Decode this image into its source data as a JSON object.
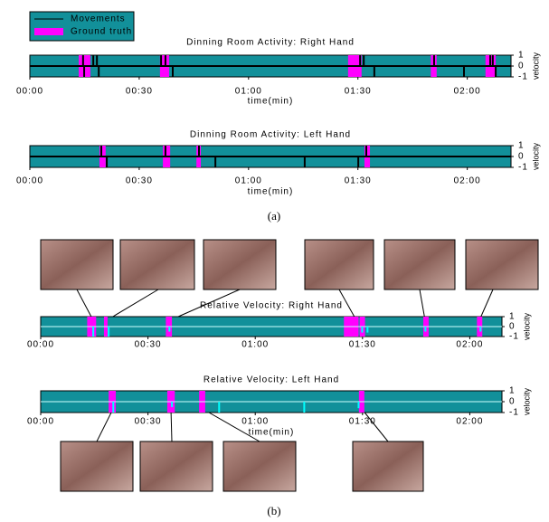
{
  "legend": {
    "items": [
      "Movements",
      "Ground truth"
    ]
  },
  "captions": [
    "(a)",
    "(b)"
  ],
  "chart_data": [
    {
      "type": "timeline",
      "title": "Dinning Room Activity: Right Hand",
      "xlabel": "time(min)",
      "ylabel": "velocity",
      "xlim": [
        0,
        132
      ],
      "xticks": [
        {
          "value": 0,
          "label": "00:00"
        },
        {
          "value": 30,
          "label": "00:30"
        },
        {
          "value": 60,
          "label": "01:00"
        },
        {
          "value": 90,
          "label": "01:30"
        },
        {
          "value": 120,
          "label": "02:00"
        }
      ],
      "ylim": [
        -1,
        1
      ],
      "yticks": [
        1,
        0,
        -1
      ],
      "band_color": "#12909a",
      "ground_truth": {
        "name": "Ground truth",
        "color": "#ff00ff",
        "intervals": [
          [
            13.4,
            16.6
          ],
          [
            35.7,
            38.2
          ],
          [
            87.3,
            91
          ],
          [
            110,
            111.6
          ],
          [
            125,
            127.8
          ]
        ]
      },
      "movements": {
        "name": "Movements",
        "color": "#000000",
        "x": [
          14.6,
          17.4,
          18.4,
          36,
          37.2,
          90.6,
          91.6,
          110.9,
          126.3,
          127,
          14.9,
          18.9,
          39.2,
          94.5,
          119.1,
          127.8
        ],
        "values": [
          1,
          1,
          1,
          1,
          1,
          1,
          1,
          1,
          1,
          1,
          -1,
          -1,
          -1,
          -1,
          -1,
          -1
        ]
      }
    },
    {
      "type": "timeline",
      "title": "Dinning Room Activity: Left Hand",
      "xlabel": "time(min)",
      "ylabel": "velocity",
      "xlim": [
        0,
        132
      ],
      "xticks": [
        {
          "value": 0,
          "label": "00:00"
        },
        {
          "value": 30,
          "label": "00:30"
        },
        {
          "value": 60,
          "label": "01:00"
        },
        {
          "value": 90,
          "label": "01:30"
        },
        {
          "value": 120,
          "label": "02:00"
        }
      ],
      "ylim": [
        -1,
        1
      ],
      "yticks": [
        1,
        0,
        -1
      ],
      "band_color": "#12909a",
      "ground_truth": {
        "color": "#ff00ff",
        "intervals": [
          [
            19.1,
            20.8
          ],
          [
            36.5,
            38.5
          ],
          [
            45.7,
            46.9
          ],
          [
            91.8,
            93.3
          ]
        ]
      },
      "movements": {
        "color": "#000000",
        "x": [
          19.6,
          37.2,
          46.4,
          92.3,
          21.1,
          50.9,
          75.4,
          90.1
        ],
        "values": [
          1,
          1,
          1,
          1,
          -1,
          -1,
          -1,
          -1
        ]
      }
    },
    {
      "type": "timeline",
      "title": "Relative Velocity: Right Hand",
      "ylabel": "velocity",
      "xlim": [
        0,
        129
      ],
      "xticks": [
        {
          "value": 0,
          "label": "00:00"
        },
        {
          "value": 30,
          "label": "00:30"
        },
        {
          "value": 60,
          "label": "01:00"
        },
        {
          "value": 90,
          "label": "01:30"
        },
        {
          "value": 120,
          "label": "02:00"
        }
      ],
      "ylim": [
        -1,
        1
      ],
      "yticks": [
        1,
        0,
        -1
      ],
      "band_color": "#12909a",
      "ground_truth": {
        "color": "#ff00ff",
        "intervals": [
          [
            13,
            15.5
          ],
          [
            17.7,
            18.7
          ],
          [
            35,
            36.7
          ],
          [
            84.8,
            88.9
          ],
          [
            89.2,
            90.7
          ],
          [
            107,
            108.5
          ],
          [
            122,
            123.5
          ]
        ]
      },
      "movements": {
        "color": "#00ffff",
        "x": [
          14.7,
          19,
          36,
          89.9,
          91.4,
          107.6,
          123
        ],
        "values": [
          -1,
          -1,
          -0.5,
          -0.6,
          -0.6,
          -0.5,
          -0.5
        ]
      }
    },
    {
      "type": "timeline",
      "title": "Relative Velocity: Left Hand",
      "xlabel": "time(min)",
      "ylabel": "velocity",
      "xlim": [
        0,
        129
      ],
      "xticks": [
        {
          "value": 0,
          "label": "00:00"
        },
        {
          "value": 30,
          "label": "00:30"
        },
        {
          "value": 60,
          "label": "01:00"
        },
        {
          "value": 90,
          "label": "01:30"
        },
        {
          "value": 120,
          "label": "02:00"
        }
      ],
      "ylim": [
        -1,
        1
      ],
      "yticks": [
        1,
        0,
        -1
      ],
      "band_color": "#12909a",
      "ground_truth": {
        "color": "#ff00ff",
        "intervals": [
          [
            19,
            21
          ],
          [
            35.4,
            37.5
          ],
          [
            44.3,
            46
          ],
          [
            89,
            90.5
          ]
        ]
      },
      "movements": {
        "color": "#00ffff",
        "x": [
          20.3,
          36.7,
          49.9,
          73.7,
          88.9
        ],
        "values": [
          -1,
          -0.5,
          -1,
          -1,
          -0.6
        ]
      }
    }
  ]
}
